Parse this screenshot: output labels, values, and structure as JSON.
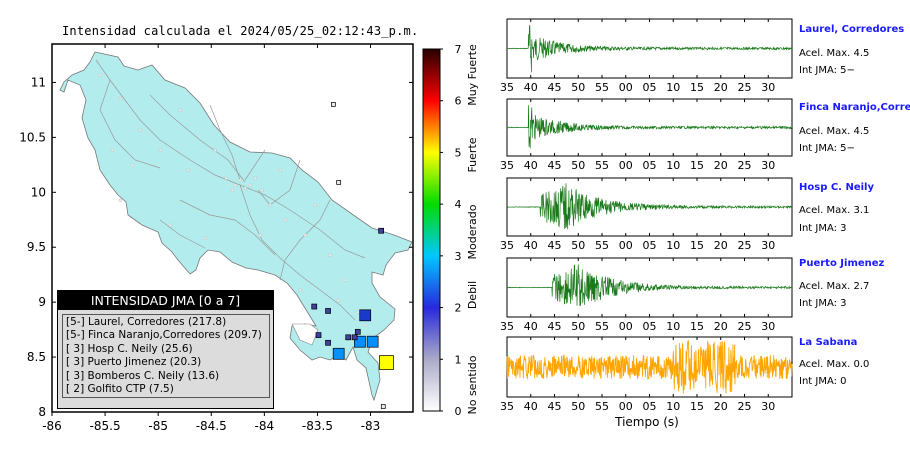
{
  "map": {
    "title": "Intensidad calculada el 2024/05/25_02:12:43_p.m.",
    "x_ticks": [
      "-86",
      "-85.5",
      "-85",
      "-84.5",
      "-84",
      "-83.5",
      "-83"
    ],
    "y_ticks": [
      "8",
      "8.5",
      "9",
      "9.5",
      "10",
      "10.5",
      "11"
    ],
    "legend_title": "INTENSIDAD JMA [0 a 7]",
    "legend_items": [
      "[5-] Laurel, Corredores (217.8)",
      "[5-] Finca Naranjo,Corredores (209.7)",
      "[ 3] Hosp C. Neily (25.6)",
      "[ 3] Puerto Jimenez (20.3)",
      "[ 3] Bomberos C. Neily (13.6)",
      "[ 2] Golfito CTP (7.5)"
    ]
  },
  "colorbar": {
    "ticks": [
      "0",
      "1",
      "2",
      "3",
      "4",
      "5",
      "6",
      "7"
    ],
    "category_labels": [
      "No sentido",
      "Debil",
      "Moderado",
      "Fuerte",
      "Muy Fuerte"
    ]
  },
  "stations": [
    {
      "name": "Laurel, Corredores",
      "acel": "Acel. Max. 4.5",
      "int": "Int JMA: 5−"
    },
    {
      "name": "Finca Naranjo,Corredor",
      "acel": "Acel. Max. 4.5",
      "int": "Int JMA: 5−"
    },
    {
      "name": "Hosp C. Neily",
      "acel": "Acel. Max. 3.1",
      "int": "Int JMA: 3"
    },
    {
      "name": "Puerto Jimenez",
      "acel": "Acel. Max. 2.7",
      "int": "Int JMA: 3"
    },
    {
      "name": "La Sabana",
      "acel": "Acel. Max. 0.0",
      "int": "Int JMA: 0"
    }
  ],
  "time_axis": {
    "ticks": [
      "35",
      "40",
      "45",
      "50",
      "55",
      "00",
      "05",
      "10",
      "15",
      "20",
      "25",
      "30"
    ],
    "xlabel": "Tiempo (s)"
  },
  "chart_data": [
    {
      "type": "scatter",
      "title": "Intensidad calculada el 2024/05/25_02:12:43_p.m.",
      "xlabel": "",
      "ylabel": "",
      "xlim": [
        -86,
        -82.6
      ],
      "ylim": [
        8,
        11.35
      ],
      "points_label": "station squares (lon, lat, JMA intensity)",
      "series": [
        {
          "x": [
            -82.85,
            -83.1,
            -83.05,
            -83.3,
            -82.98,
            -83.4,
            -83.49,
            -83.53,
            -83.21,
            -83.15,
            -83.12,
            -83.4,
            -82.9,
            -83.3,
            -83.35,
            -82.88
          ],
          "y": [
            8.45,
            8.64,
            8.88,
            8.53,
            8.64,
            8.92,
            8.7,
            8.96,
            8.68,
            8.68,
            8.73,
            8.63,
            9.65,
            10.09,
            10.8,
            8.05
          ],
          "values": [
            5,
            3,
            3,
            3,
            3,
            2,
            2,
            2,
            2,
            2,
            2,
            2,
            2,
            1,
            1,
            1
          ]
        }
      ]
    },
    {
      "type": "line",
      "title": "Laurel, Corredores",
      "series": [
        {
          "name": "Laurel, Corredores",
          "peak": 4.5,
          "onset": 39.5,
          "color": "#1a7a1a"
        }
      ]
    },
    {
      "type": "line",
      "title": "Finca Naranjo,Corredor",
      "series": [
        {
          "name": "Finca Naranjo,Corredor",
          "peak": 4.5,
          "onset": 39.5,
          "color": "#1a7a1a"
        }
      ]
    },
    {
      "type": "line",
      "title": "Hosp C. Neily",
      "series": [
        {
          "name": "Hosp C. Neily",
          "peak": 3.1,
          "onset": 42,
          "color": "#1a7a1a"
        }
      ]
    },
    {
      "type": "line",
      "title": "Puerto Jimenez",
      "series": [
        {
          "name": "Puerto Jimenez",
          "peak": 2.7,
          "onset": 44.5,
          "color": "#1a7a1a"
        }
      ]
    },
    {
      "type": "line",
      "title": "La Sabana",
      "series": [
        {
          "name": "La Sabana",
          "peak": 0.0,
          "onset": 35,
          "color": "#ffa500"
        }
      ]
    }
  ],
  "colors": {
    "land": "#b3eced",
    "ocean": "#ffffff",
    "trace_green": "#1a7a1a",
    "trace_orange": "#ffa500",
    "station_name": "#1a1aff"
  }
}
